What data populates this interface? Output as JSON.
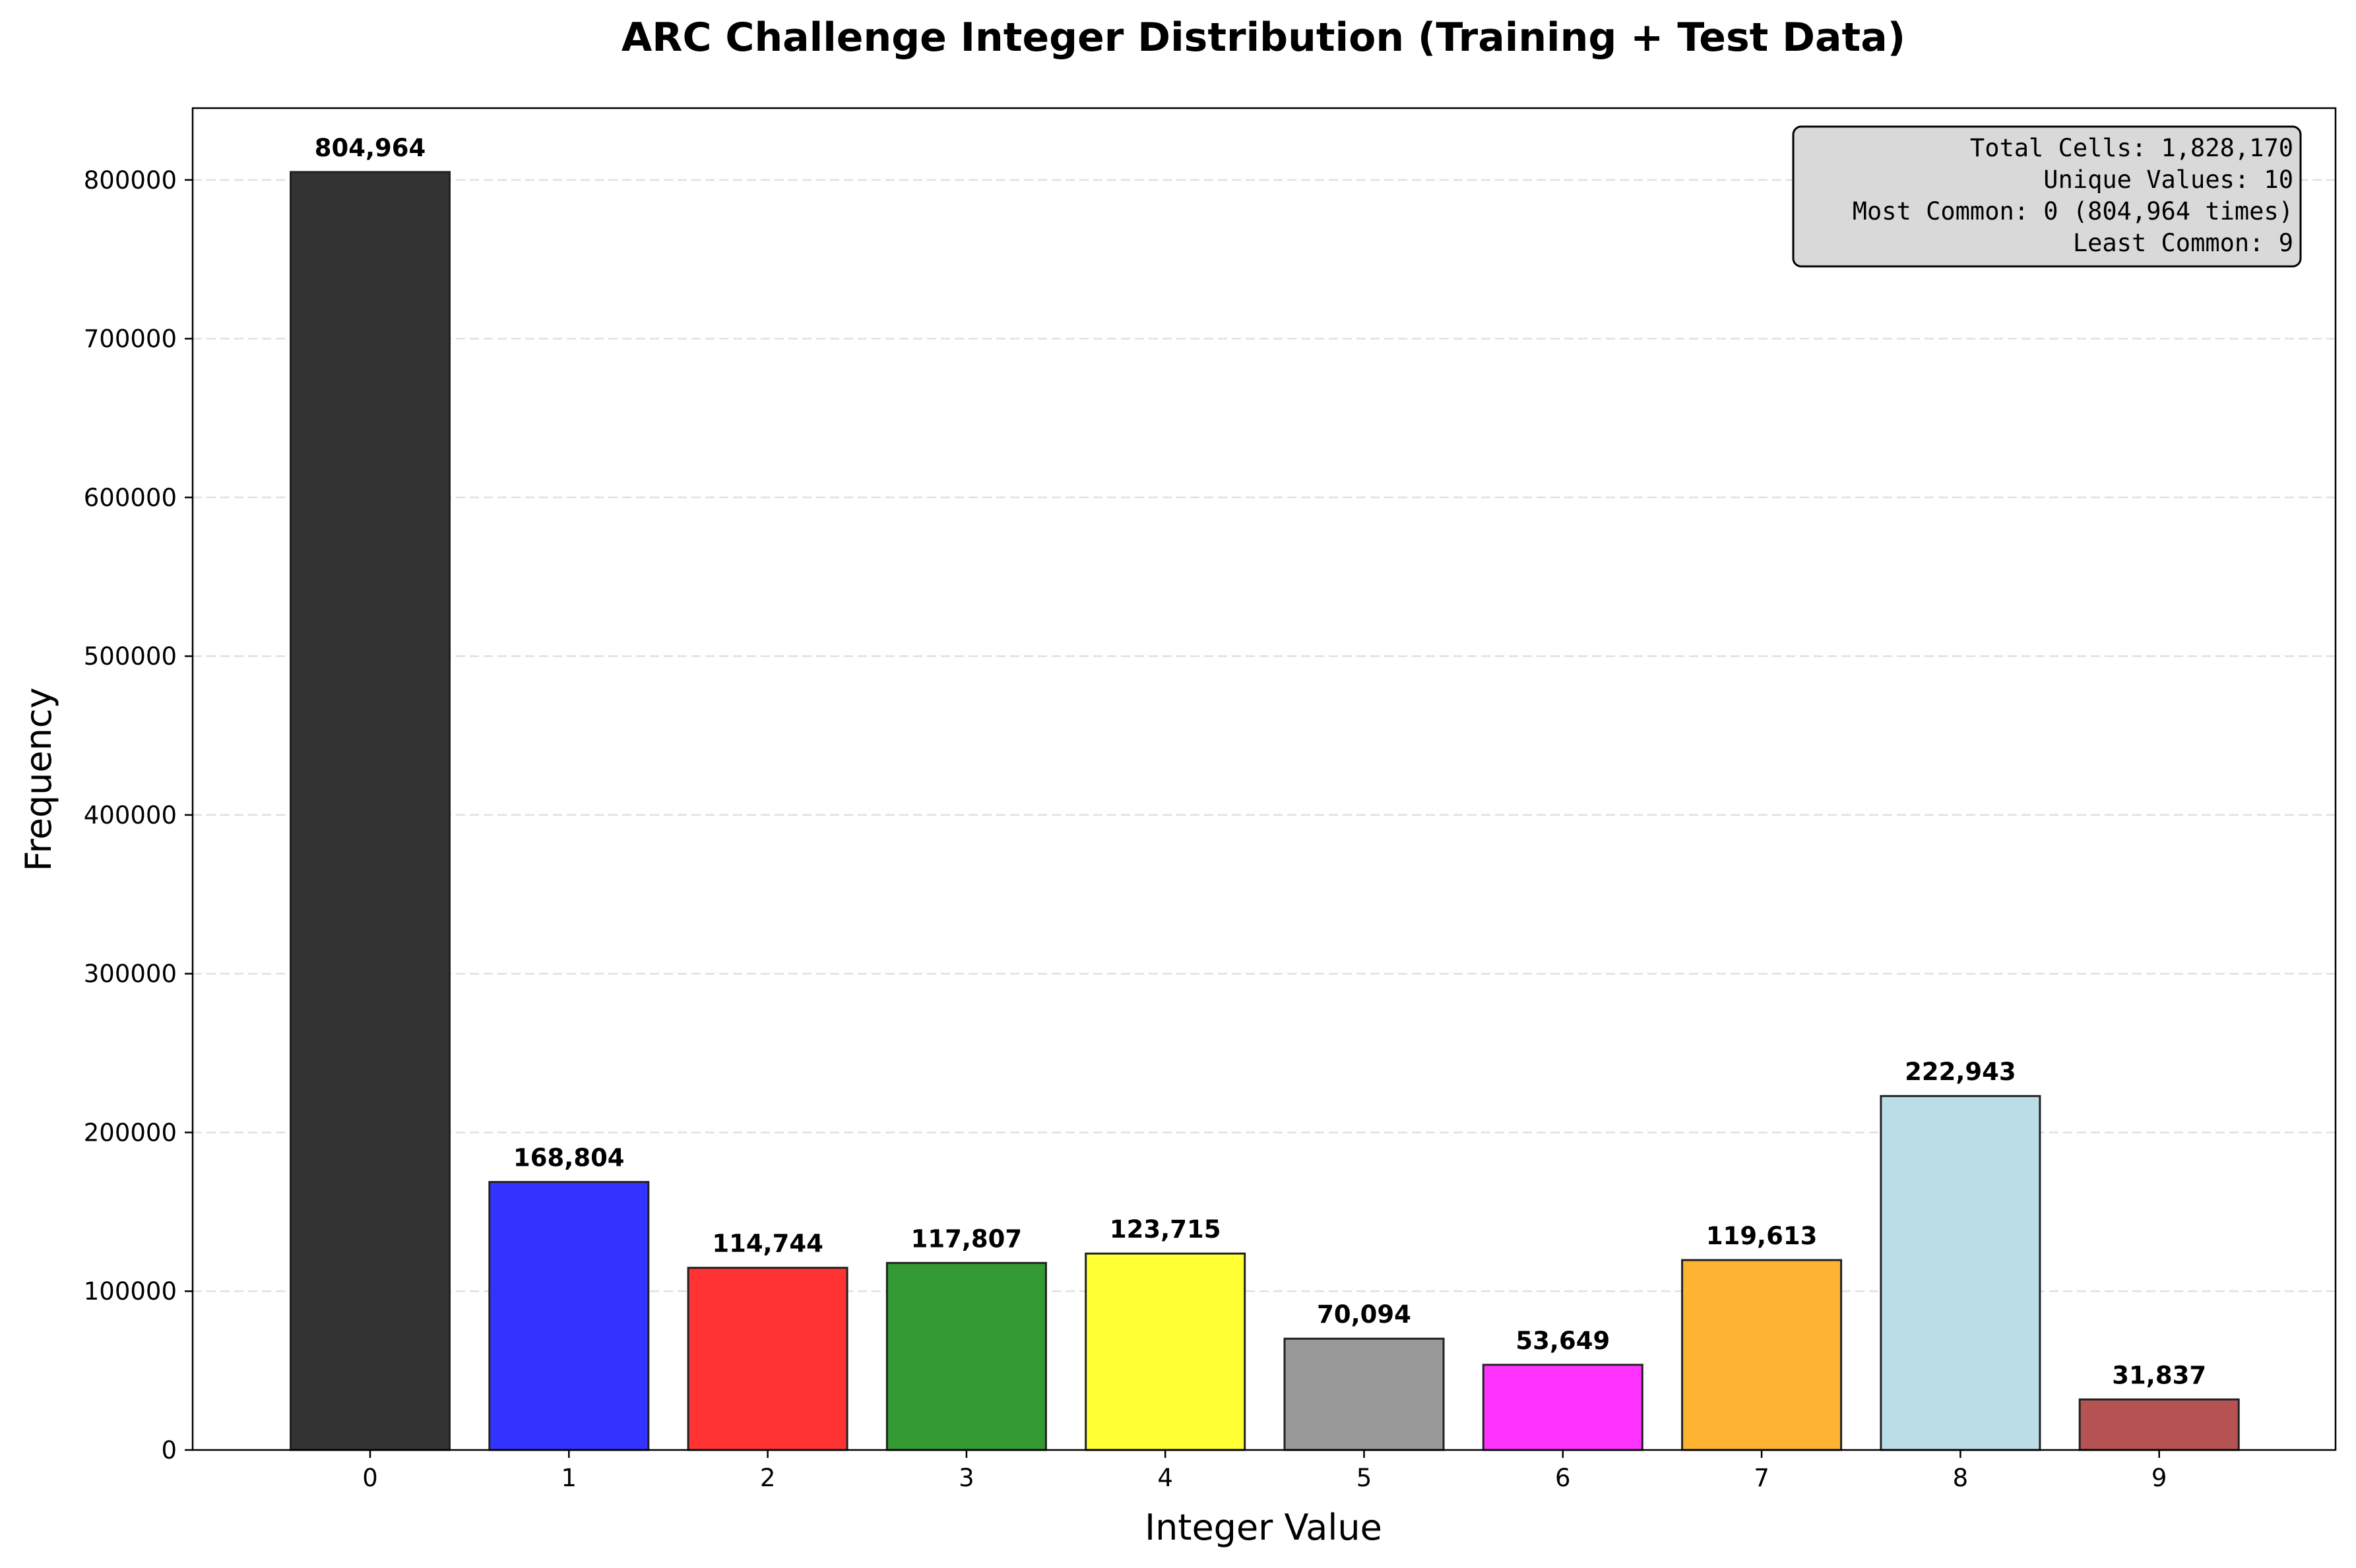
{
  "chart_data": {
    "type": "bar",
    "title": "ARC Challenge Integer Distribution (Training + Test Data)",
    "xlabel": "Integer Value",
    "ylabel": "Frequency",
    "categories": [
      "0",
      "1",
      "2",
      "3",
      "4",
      "5",
      "6",
      "7",
      "8",
      "9"
    ],
    "values": [
      804964,
      168804,
      114744,
      117807,
      123715,
      70094,
      53649,
      119613,
      222943,
      31837
    ],
    "value_labels": [
      "804,964",
      "168,804",
      "114,744",
      "117,807",
      "123,715",
      "70,094",
      "53,649",
      "119,613",
      "222,943",
      "31,837"
    ],
    "colors": [
      "#333333",
      "#3333ff",
      "#ff3333",
      "#339933",
      "#ffff33",
      "#999999",
      "#ff33ff",
      "#ffb333",
      "#bbdde8",
      "#b55353"
    ],
    "bar_edge_color": "#222222",
    "ylim": [
      0,
      845212
    ],
    "yticks": [
      0,
      100000,
      200000,
      300000,
      400000,
      500000,
      600000,
      700000,
      800000
    ],
    "ytick_labels": [
      "0",
      "100000",
      "200000",
      "300000",
      "400000",
      "500000",
      "600000",
      "700000",
      "800000"
    ],
    "grid": "y-dashed",
    "info_box": {
      "placement": "top-right",
      "lines": [
        "Total Cells: 1,828,170",
        "Unique Values: 10",
        "Most Common: 0 (804,964 times)",
        "Least Common: 9"
      ]
    }
  }
}
